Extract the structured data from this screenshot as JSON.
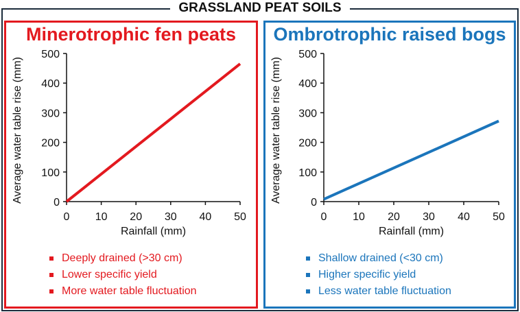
{
  "title": "GRASSLAND PEAT SOILS",
  "panels": [
    {
      "title": "Minerotrophic fen peats",
      "color": "#e3191f",
      "bullets": [
        "Deeply drained (>30 cm)",
        "Lower specific yield",
        "More water table fluctuation"
      ]
    },
    {
      "title": "Ombrotrophic raised bogs",
      "color": "#1b75bb",
      "bullets": [
        "Shallow drained (<30 cm)",
        "Higher specific yield",
        "Less water table fluctuation"
      ]
    }
  ],
  "chart_data": [
    {
      "type": "line",
      "title": "Minerotrophic fen peats",
      "xlabel": "Rainfall (mm)",
      "ylabel": "Average water table rise (mm)",
      "xlim": [
        0,
        50
      ],
      "ylim": [
        0,
        500
      ],
      "xticks": [
        0,
        10,
        20,
        30,
        40,
        50
      ],
      "yticks": [
        0,
        100,
        200,
        300,
        400,
        500
      ],
      "series": [
        {
          "name": "Minerotrophic fen peats",
          "x": [
            0,
            50
          ],
          "y": [
            0,
            465
          ],
          "color": "#e3191f"
        }
      ],
      "grid": false
    },
    {
      "type": "line",
      "title": "Ombrotrophic raised bogs",
      "xlabel": "Rainfall (mm)",
      "ylabel": "Average water table rise (mm)",
      "xlim": [
        0,
        50
      ],
      "ylim": [
        0,
        500
      ],
      "xticks": [
        0,
        10,
        20,
        30,
        40,
        50
      ],
      "yticks": [
        0,
        100,
        200,
        300,
        400,
        500
      ],
      "series": [
        {
          "name": "Ombrotrophic raised bogs",
          "x": [
            0,
            50
          ],
          "y": [
            8,
            272
          ],
          "color": "#1b75bb"
        }
      ],
      "grid": false
    }
  ]
}
